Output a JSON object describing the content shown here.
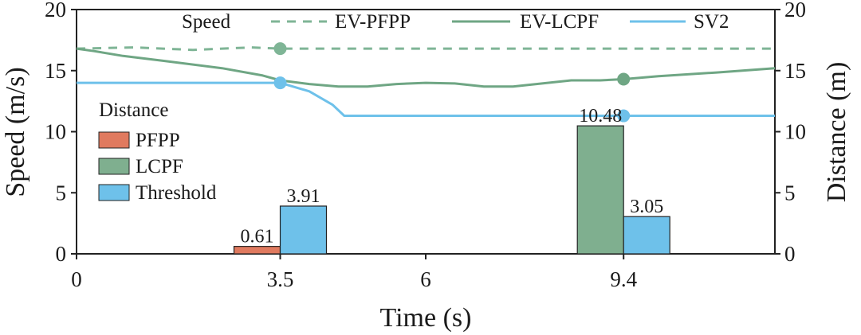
{
  "chart_data": {
    "type": "bar+line",
    "xlabel": "Time (s)",
    "ylabel_left": "Speed (m/s)",
    "ylabel_right": "Distance (m)",
    "xlim": [
      0,
      12
    ],
    "ylim_left": [
      0,
      20
    ],
    "ylim_right": [
      0,
      20
    ],
    "x_ticks": [
      "0",
      "3.5",
      "6",
      "9.4"
    ],
    "x_tick_values": [
      0,
      3.5,
      6,
      9.4
    ],
    "y_ticks_left": [
      "0",
      "5",
      "10",
      "15",
      "20"
    ],
    "y_ticks_right": [
      "0",
      "5",
      "10",
      "15",
      "20"
    ],
    "speed_legend_title": "Speed",
    "distance_legend_title": "Distance",
    "colors": {
      "pfpp": "#e07a5f",
      "lcpf": "#7faf8f",
      "threshold": "#6ec1ea",
      "ev_pfpp_line": "#7fb596",
      "ev_lcpf_line": "#6fa684",
      "sv2_line": "#6ec1ea"
    },
    "speed_series": [
      {
        "name": "EV-PFPP",
        "style": "dashed",
        "x": [
          0,
          1,
          2,
          3,
          3.5,
          4.5,
          6,
          7,
          8,
          9.4,
          10.5,
          12
        ],
        "y": [
          16.8,
          16.9,
          16.7,
          16.9,
          16.8,
          16.8,
          16.8,
          16.8,
          16.8,
          16.8,
          16.8,
          16.8
        ]
      },
      {
        "name": "EV-LCPF",
        "style": "solid",
        "x": [
          0,
          0.3,
          0.8,
          1.5,
          2.5,
          3.2,
          3.5,
          4,
          4.5,
          5,
          5.5,
          6,
          6.5,
          7,
          7.5,
          8,
          8.5,
          9,
          9.4,
          10,
          11,
          12
        ],
        "y": [
          16.8,
          16.6,
          16.2,
          15.8,
          15.2,
          14.6,
          14.2,
          13.9,
          13.7,
          13.7,
          13.9,
          14.0,
          13.95,
          13.7,
          13.7,
          13.95,
          14.2,
          14.2,
          14.3,
          14.55,
          14.85,
          15.2
        ]
      },
      {
        "name": "SV2",
        "style": "solid",
        "x": [
          0,
          3.5,
          4.0,
          4.4,
          4.6,
          5.0,
          8,
          12
        ],
        "y": [
          14.0,
          14.0,
          13.3,
          12.2,
          11.3,
          11.3,
          11.3,
          11.3
        ]
      }
    ],
    "speed_markers": [
      {
        "series": "EV-PFPP",
        "x": 3.5,
        "y": 16.8
      },
      {
        "series": "SV2",
        "x": 3.5,
        "y": 14.0
      },
      {
        "series": "EV-LCPF",
        "x": 9.4,
        "y": 14.3
      },
      {
        "series": "SV2",
        "x": 9.4,
        "y": 11.3
      }
    ],
    "distance_series": [
      {
        "name": "PFPP",
        "bars": [
          {
            "x": 3.5,
            "value": 0.61,
            "label": "0.61"
          }
        ]
      },
      {
        "name": "LCPF",
        "bars": [
          {
            "x": 9.4,
            "value": 10.48,
            "label": "10.48"
          }
        ]
      },
      {
        "name": "Threshold",
        "bars": [
          {
            "x": 3.5,
            "value": 3.91,
            "label": "3.91"
          },
          {
            "x": 9.4,
            "value": 3.05,
            "label": "3.05"
          }
        ]
      }
    ]
  }
}
